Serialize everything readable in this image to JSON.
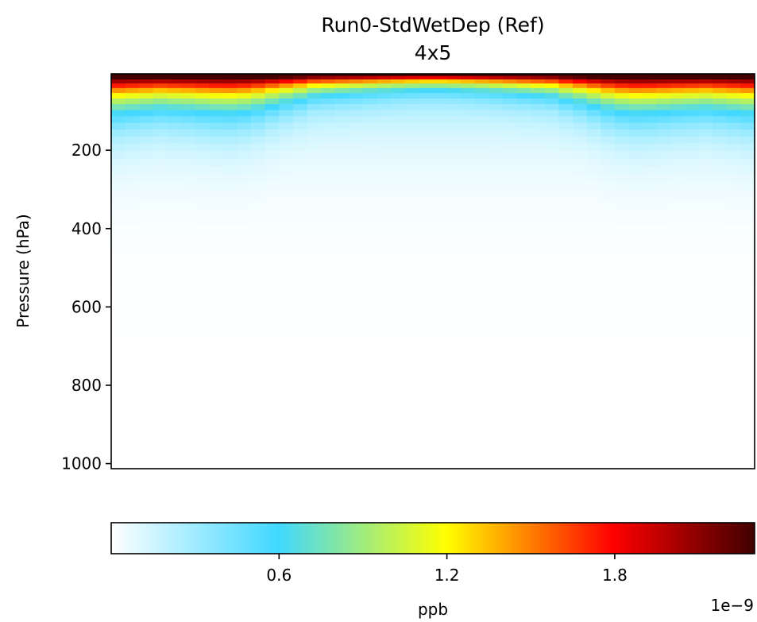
{
  "chart_data": {
    "type": "heatmap",
    "title": "Run0-StdWetDep (Ref)",
    "subtitle": "4x5",
    "xlabel": "",
    "ylabel": "Pressure (hPa)",
    "y_axis": {
      "ticks": [
        200,
        400,
        600,
        800,
        1000
      ],
      "tick_labels": [
        "200",
        "400",
        "600",
        "800",
        "1000"
      ],
      "range": [
        1013,
        5
      ],
      "inverted": true
    },
    "x_axis": {
      "ticks": [],
      "tick_labels": [],
      "range": [
        -90,
        90
      ]
    },
    "grid": false,
    "colorbar": {
      "label": "ppb",
      "scale_note": "1e−9",
      "orientation": "horizontal",
      "placement": "bottom",
      "range": [
        0,
        2.3
      ],
      "ticks": [
        0.6,
        1.2,
        1.8
      ],
      "tick_labels": [
        "0.6",
        "1.2",
        "1.8"
      ],
      "colormap": [
        {
          "stop": 0.0,
          "color": "#ffffff"
        },
        {
          "stop": 0.26,
          "color": "#40d8ff"
        },
        {
          "stop": 0.52,
          "color": "#ffff00"
        },
        {
          "stop": 0.78,
          "color": "#ff0000"
        },
        {
          "stop": 1.0,
          "color": "#400000"
        }
      ]
    },
    "field_description": {
      "value_unit": "ppb x 1e-9",
      "top_pressure_hPa": 5,
      "surface_pressure_hPa": 1013,
      "n_latitudes": 46,
      "n_levels": 47,
      "peak_value": 2.3,
      "structure": "maximum concentration at model top, decreasing downward; penetrates deepest at mid/high latitudes, shallowest over the tropics"
    }
  }
}
